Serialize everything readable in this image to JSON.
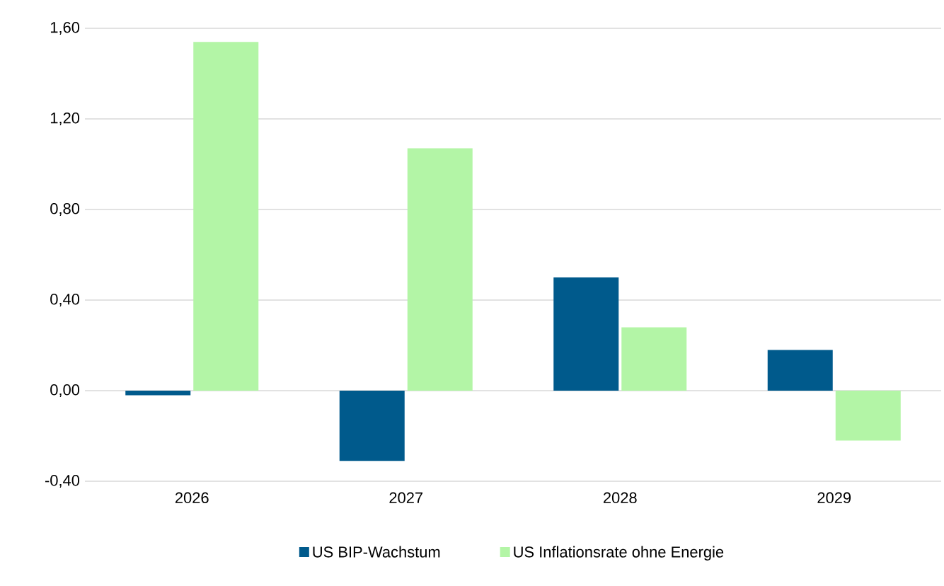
{
  "chart_data": {
    "type": "bar",
    "categories": [
      "2026",
      "2027",
      "2028",
      "2029"
    ],
    "series": [
      {
        "name": "US BIP-Wachstum",
        "color": "#005a8c",
        "values": [
          -0.02,
          -0.31,
          0.5,
          0.18
        ]
      },
      {
        "name": "US Inflationsrate ohne Energie",
        "color": "#b3f5a6",
        "values": [
          1.54,
          1.07,
          0.28,
          -0.22
        ]
      }
    ],
    "ylim": [
      -0.4,
      1.6
    ],
    "yticks": [
      {
        "value": -0.4,
        "label": "-0,40"
      },
      {
        "value": 0,
        "label": "0,00"
      },
      {
        "value": 0.4,
        "label": "0,40"
      },
      {
        "value": 0.8,
        "label": "0,80"
      },
      {
        "value": 1.2,
        "label": "1,20"
      },
      {
        "value": 1.6,
        "label": "1,60"
      }
    ],
    "grid": "y",
    "legend": "bottom"
  }
}
